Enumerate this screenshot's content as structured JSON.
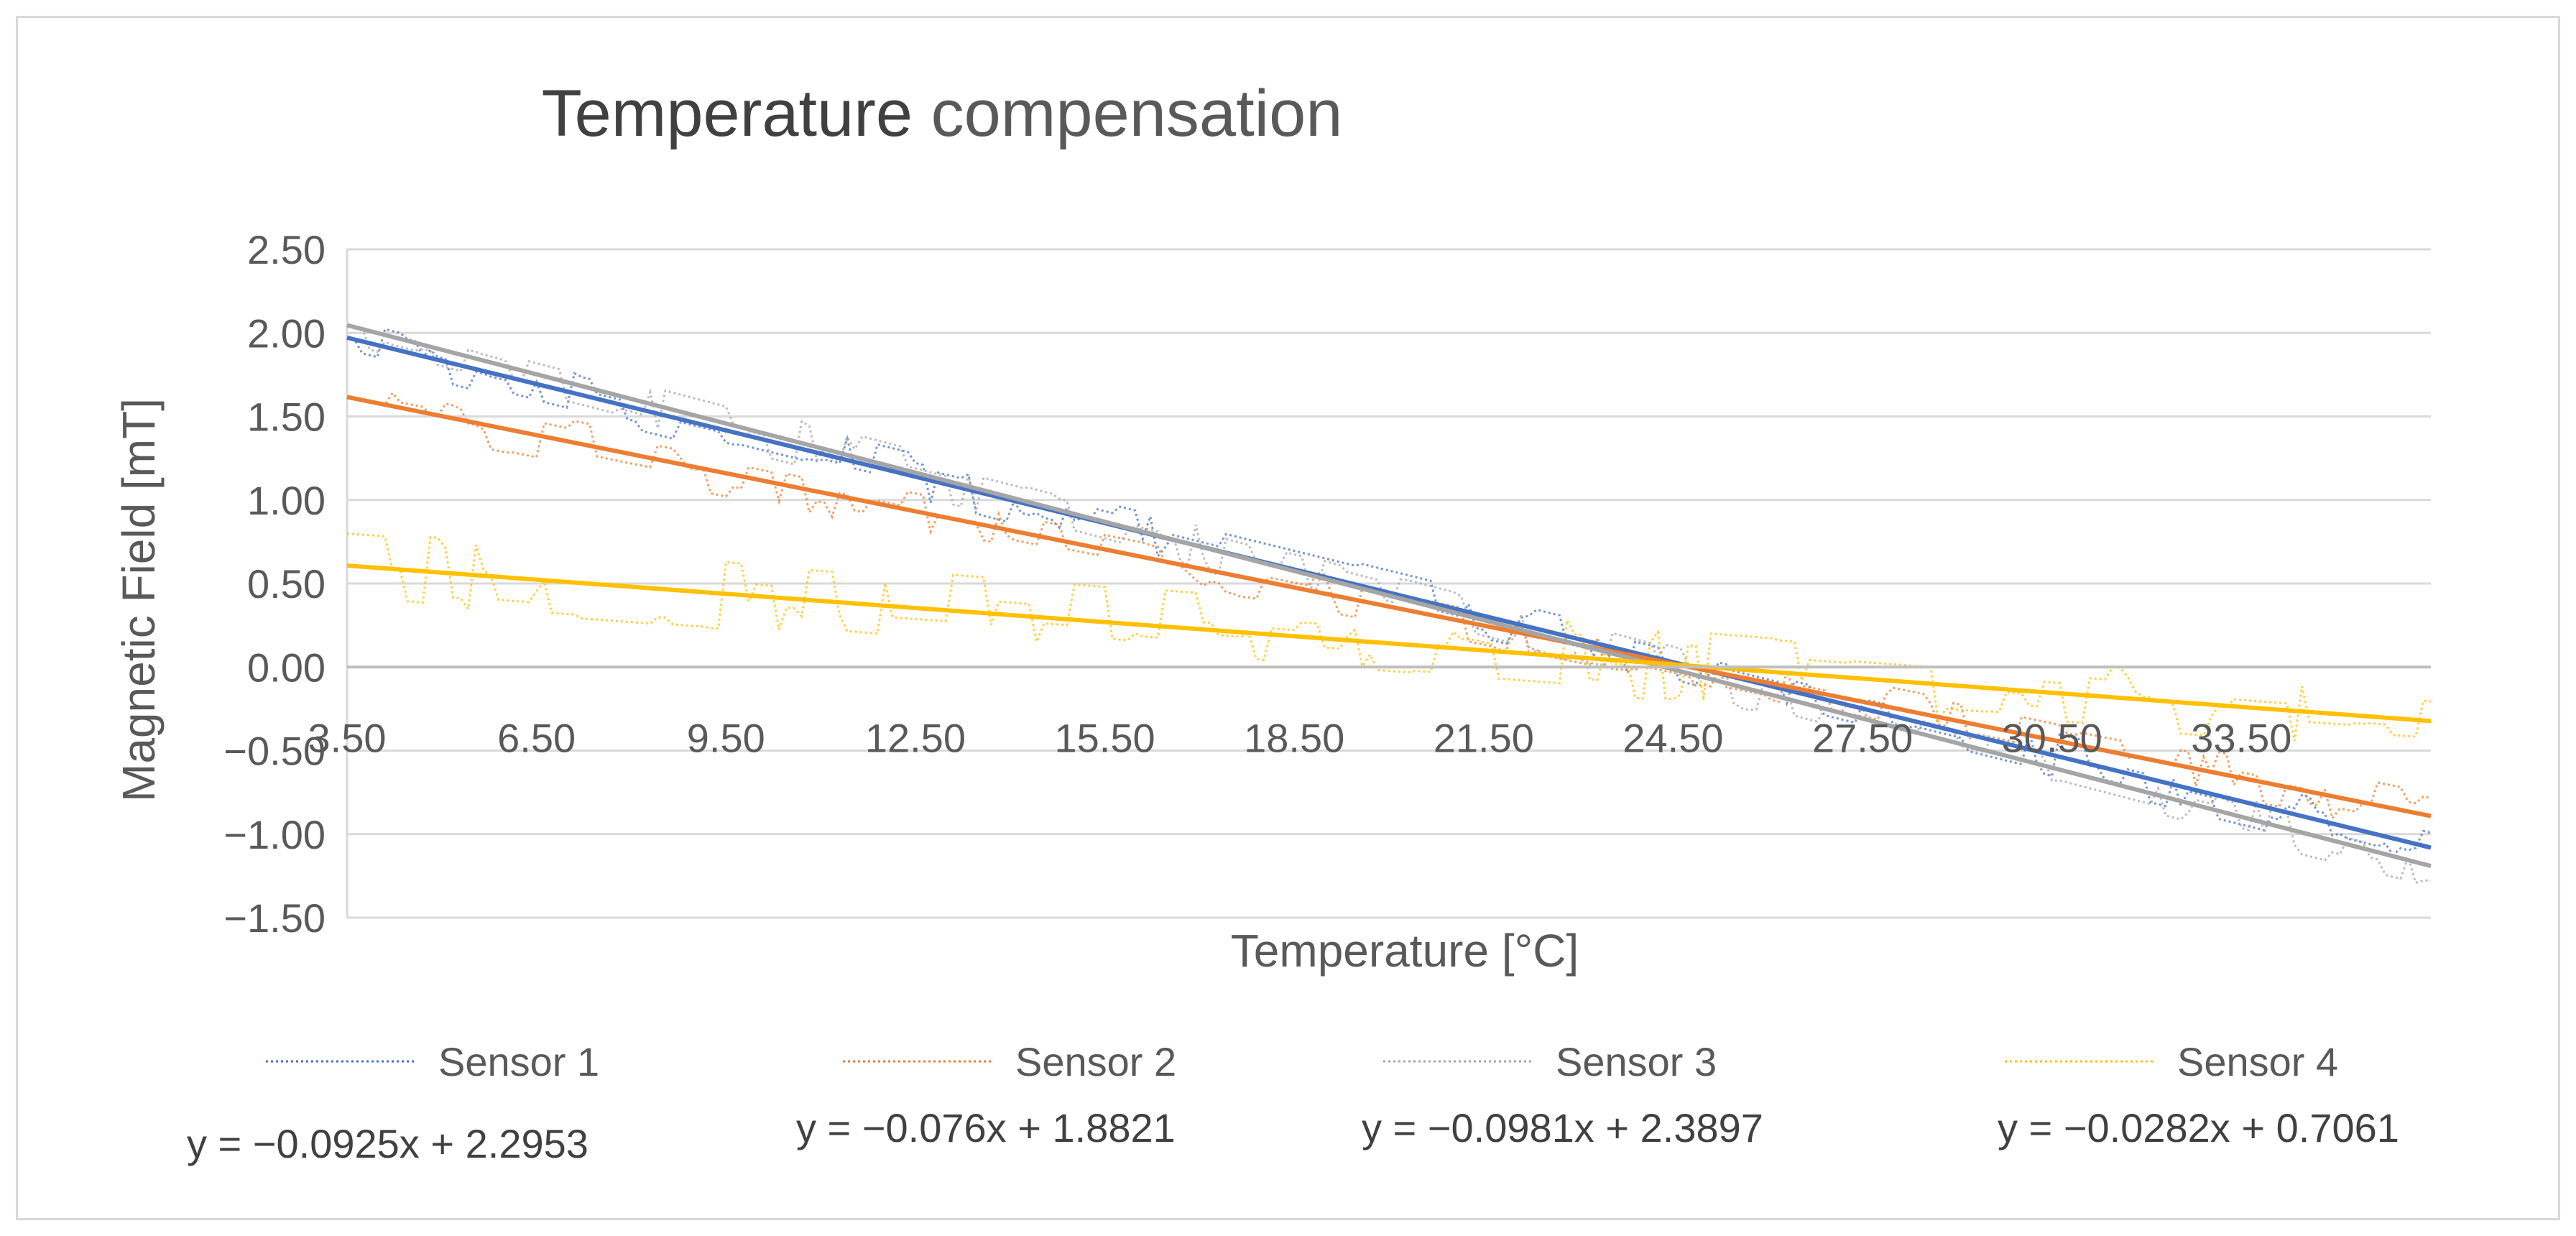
{
  "chart_data": {
    "type": "line",
    "title": {
      "parts": [
        {
          "text": "Temperature",
          "color": "#404040"
        },
        {
          "text": " compensation",
          "color": "#595959"
        }
      ]
    },
    "xlabel": "Temperature [°C]",
    "ylabel": "Magnetic Field [mT]",
    "xlim": [
      3.5,
      36.5
    ],
    "ylim": [
      -1.5,
      2.5
    ],
    "x_ticks": [
      3.5,
      6.5,
      9.5,
      12.5,
      15.5,
      18.5,
      21.5,
      24.5,
      27.5,
      30.5,
      33.5
    ],
    "x_tick_labels": [
      "3.50",
      "6.50",
      "9.50",
      "12.50",
      "15.50",
      "18.50",
      "21.50",
      "24.50",
      "27.50",
      "30.50",
      "33.50"
    ],
    "y_ticks": [
      2.5,
      2.0,
      1.5,
      1.0,
      0.5,
      0.0,
      -0.5,
      -1.0,
      -1.5
    ],
    "y_tick_labels": [
      "2.50",
      "2.00",
      "1.50",
      "1.00",
      "0.50",
      "0.00",
      "−0.50",
      "−1.00",
      "−1.50"
    ],
    "grid": true,
    "legend_position": "bottom",
    "series": [
      {
        "name": "Sensor 1",
        "color": "#4472c4",
        "style": "dotted",
        "trend": {
          "slope": -0.0925,
          "intercept": 2.2953,
          "color": "#4472c4",
          "equation": "y = −0.0925x + 2.2953"
        },
        "noise": 0.14,
        "offset": 0.0
      },
      {
        "name": "Sensor 2",
        "color": "#ed7d31",
        "style": "dotted",
        "trend": {
          "slope": -0.076,
          "intercept": 1.8821,
          "color": "#ed7d31",
          "equation": "y = −0.076x + 1.8821"
        },
        "noise": 0.14,
        "offset": 0.0
      },
      {
        "name": "Sensor 3",
        "color": "#a5a5a5",
        "style": "dotted",
        "trend": {
          "slope": -0.0981,
          "intercept": 2.3897,
          "color": "#a5a5a5",
          "equation": "y = −0.0981x + 2.3897"
        },
        "noise": 0.14,
        "offset": 0.0
      },
      {
        "name": "Sensor 4",
        "color": "#ffc000",
        "style": "dotted",
        "trend": {
          "slope": -0.0282,
          "intercept": 0.7061,
          "color": "#ffc000",
          "equation": "y = −0.0282x + 0.7061"
        },
        "noise": 0.22,
        "offset": 0.0
      }
    ]
  }
}
